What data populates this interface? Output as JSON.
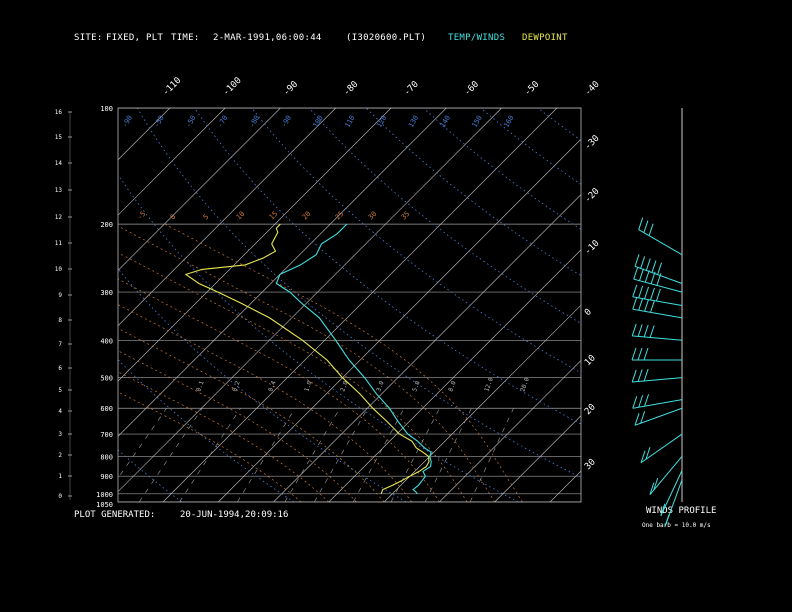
{
  "header": {
    "site_label": "SITE:",
    "site_value": "FIXED, PLT",
    "time_label": "TIME:",
    "time_value": "2-MAR-1991,06:00:44",
    "file": "(I3020600.PLT)",
    "legend_temp": "TEMP/WINDS",
    "legend_dew": "DEWPOINT"
  },
  "footer": {
    "generated_label": "PLOT GENERATED:",
    "generated_value": "20-JUN-1994,20:09:16",
    "winds_title": "WINDS PROFILE",
    "barb_note": "One barb = 10.0 m/s"
  },
  "colors": {
    "temp": "#40e0e0",
    "dewpoint": "#e8e850",
    "isobar": "#a0a0a0",
    "isotherm": "#c8c8c8",
    "dry_adiabat": "#4a7fd8",
    "moist_adiabat": "#c87838",
    "mixing_ratio": "#a0a0a0"
  },
  "chart_data": {
    "type": "skew-t",
    "pressure_ticks": [
      "100",
      "200",
      "300",
      "400",
      "500",
      "600",
      "700",
      "800",
      "900",
      "1000",
      "1050"
    ],
    "height_ticks": [
      "16",
      "15",
      "14",
      "13",
      "12",
      "11",
      "10",
      "9",
      "8",
      "7",
      "6",
      "5",
      "4",
      "3",
      "2",
      "1",
      "0"
    ],
    "top_temp_ticks": [
      "-110",
      "-100",
      "-90",
      "-80",
      "-70",
      "-60",
      "-50",
      "-40"
    ],
    "right_temp_ticks": [
      "-30",
      "-20",
      "-10",
      "0",
      "10",
      "20",
      "30"
    ],
    "theta_labels": [
      "-90",
      "-50",
      "-50",
      "-70",
      "-80",
      "-90",
      "100",
      "110",
      "120",
      "130",
      "140",
      "150",
      "160"
    ],
    "theta_label_levels": [
      "p110",
      "p110",
      "p110",
      "p110",
      "p110",
      "p110",
      "p110",
      "p110",
      "p110",
      "p110",
      "p110",
      "p110",
      "p110"
    ],
    "theta_w_labels": [
      "-5",
      "0",
      "5",
      "10",
      "15",
      "20",
      "25",
      "30",
      "35"
    ],
    "mixing_ratio_labels": [
      "0.1",
      "0.2",
      "0.4",
      "1.0",
      "2.0",
      "3.0",
      "5.0",
      "8.0",
      "12.0",
      "20.0"
    ],
    "temperature_profile": [
      {
        "p": 1000,
        "t": 14.5
      },
      {
        "p": 990,
        "t": 14
      },
      {
        "p": 975,
        "t": 13
      },
      {
        "p": 950,
        "t": 13.2
      },
      {
        "p": 900,
        "t": 12.8
      },
      {
        "p": 875,
        "t": 11.5
      },
      {
        "p": 850,
        "t": 12
      },
      {
        "p": 825,
        "t": 11.2
      },
      {
        "p": 800,
        "t": 10
      },
      {
        "p": 780,
        "t": 9.5
      },
      {
        "p": 760,
        "t": 7.5
      },
      {
        "p": 730,
        "t": 5
      },
      {
        "p": 700,
        "t": 2
      },
      {
        "p": 650,
        "t": -2
      },
      {
        "p": 600,
        "t": -6
      },
      {
        "p": 550,
        "t": -11
      },
      {
        "p": 500,
        "t": -16
      },
      {
        "p": 450,
        "t": -22
      },
      {
        "p": 400,
        "t": -28
      },
      {
        "p": 350,
        "t": -35
      },
      {
        "p": 320,
        "t": -41
      },
      {
        "p": 300,
        "t": -45
      },
      {
        "p": 285,
        "t": -49
      },
      {
        "p": 270,
        "t": -50
      },
      {
        "p": 255,
        "t": -48
      },
      {
        "p": 240,
        "t": -47
      },
      {
        "p": 225,
        "t": -48
      },
      {
        "p": 212,
        "t": -47
      },
      {
        "p": 200,
        "t": -47
      }
    ],
    "dewpoint_profile": [
      {
        "p": 1000,
        "t": 8
      },
      {
        "p": 975,
        "t": 7.5
      },
      {
        "p": 950,
        "t": 8.5
      },
      {
        "p": 925,
        "t": 9.3
      },
      {
        "p": 900,
        "t": 10
      },
      {
        "p": 875,
        "t": 10.8
      },
      {
        "p": 850,
        "t": 11.2
      },
      {
        "p": 825,
        "t": 10.8
      },
      {
        "p": 800,
        "t": 9.8
      },
      {
        "p": 780,
        "t": 8
      },
      {
        "p": 760,
        "t": 6
      },
      {
        "p": 730,
        "t": 4
      },
      {
        "p": 700,
        "t": 0.5
      },
      {
        "p": 650,
        "t": -4
      },
      {
        "p": 600,
        "t": -9
      },
      {
        "p": 550,
        "t": -14
      },
      {
        "p": 500,
        "t": -20
      },
      {
        "p": 450,
        "t": -26
      },
      {
        "p": 400,
        "t": -34
      },
      {
        "p": 350,
        "t": -44
      },
      {
        "p": 320,
        "t": -52
      },
      {
        "p": 300,
        "t": -58
      },
      {
        "p": 285,
        "t": -63
      },
      {
        "p": 270,
        "t": -67
      },
      {
        "p": 262,
        "t": -65
      },
      {
        "p": 255,
        "t": -58
      },
      {
        "p": 245,
        "t": -56
      },
      {
        "p": 235,
        "t": -55
      },
      {
        "p": 225,
        "t": -57
      },
      {
        "p": 210,
        "t": -58
      },
      {
        "p": 205,
        "t": -59
      },
      {
        "p": 200,
        "t": -59
      }
    ],
    "winds": [
      {
        "p": 240,
        "dir": 300,
        "spd": 30
      },
      {
        "p": 285,
        "dir": 290,
        "spd": 45
      },
      {
        "p": 300,
        "dir": 285,
        "spd": 45
      },
      {
        "p": 325,
        "dir": 280,
        "spd": 45
      },
      {
        "p": 350,
        "dir": 280,
        "spd": 40
      },
      {
        "p": 400,
        "dir": 275,
        "spd": 35
      },
      {
        "p": 450,
        "dir": 270,
        "spd": 30
      },
      {
        "p": 500,
        "dir": 265,
        "spd": 25
      },
      {
        "p": 570,
        "dir": 260,
        "spd": 25
      },
      {
        "p": 600,
        "dir": 250,
        "spd": 20
      },
      {
        "p": 700,
        "dir": 235,
        "spd": 15
      },
      {
        "p": 800,
        "dir": 220,
        "spd": 15
      },
      {
        "p": 870,
        "dir": 205,
        "spd": 10
      },
      {
        "p": 920,
        "dir": 200,
        "spd": 10
      }
    ]
  }
}
